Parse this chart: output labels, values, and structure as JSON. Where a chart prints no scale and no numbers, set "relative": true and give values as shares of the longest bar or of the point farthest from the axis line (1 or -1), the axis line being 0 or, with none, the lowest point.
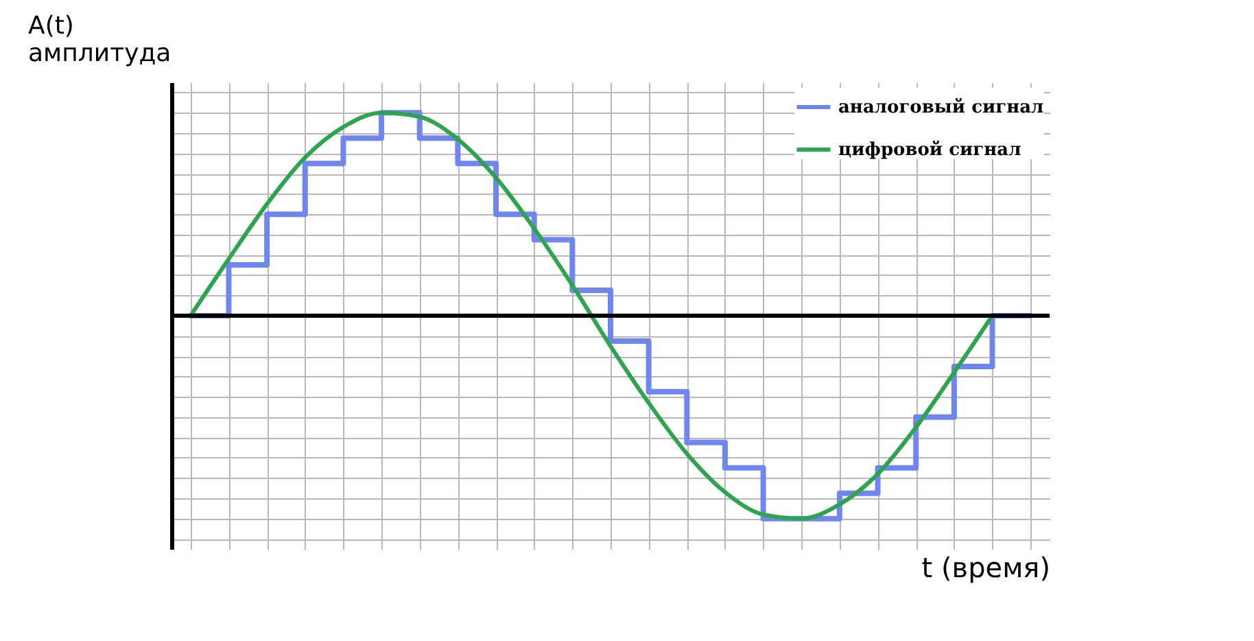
{
  "chart_data": {
    "type": "line",
    "relative": true,
    "ylabel": "A(t)\nамплитуда",
    "xlabel": "t (время)",
    "categories": [
      null,
      null,
      null,
      null,
      null,
      null,
      null,
      null,
      null,
      null,
      null,
      null,
      null,
      null,
      null,
      null,
      null,
      null,
      null,
      null,
      null,
      null,
      null
    ],
    "series": [
      {
        "name": "аналоговый сигнал",
        "type": "step",
        "color": "#6f86f0",
        "values": [
          0,
          0.25,
          0.5,
          0.75,
          0.875,
          1,
          0.875,
          0.75,
          0.5,
          0.375,
          0.125,
          -0.125,
          -0.375,
          -0.625,
          -0.75,
          -1,
          -1,
          -0.875,
          -0.75,
          -0.5,
          -0.25,
          0,
          0
        ]
      },
      {
        "name": "цифровой сигнал",
        "type": "line",
        "color": "#2ea44f",
        "values": [
          0,
          0.28,
          0.55,
          0.78,
          0.93,
          1,
          0.98,
          0.87,
          0.68,
          0.43,
          0.15,
          -0.15,
          -0.43,
          -0.68,
          -0.87,
          -0.98,
          -1,
          -0.93,
          -0.78,
          -0.55,
          -0.28,
          0,
          null
        ]
      }
    ],
    "grid": true,
    "legend": "top right"
  }
}
